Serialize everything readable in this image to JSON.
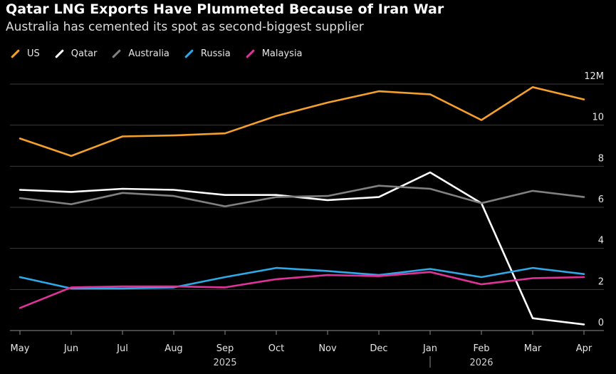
{
  "header": {
    "title": "Qatar LNG Exports Have Plummeted Because of Iran War",
    "subtitle": "Australia has cemented its spot as second-biggest supplier"
  },
  "legend": [
    {
      "name": "US",
      "color": "#f5a02c"
    },
    {
      "name": "Qatar",
      "color": "#ffffff"
    },
    {
      "name": "Australia",
      "color": "#808080"
    },
    {
      "name": "Russia",
      "color": "#2ea8e6"
    },
    {
      "name": "Malaysia",
      "color": "#e0339a"
    }
  ],
  "chart_data": {
    "type": "line",
    "categories": [
      "May",
      "Jun",
      "Jul",
      "Aug",
      "Sep",
      "Oct",
      "Nov",
      "Dec",
      "Jan",
      "Feb",
      "Mar",
      "Apr"
    ],
    "year_labels": [
      {
        "label": "2025",
        "under": "Sep"
      },
      {
        "label": "2026",
        "under": "Feb"
      }
    ],
    "ylim": [
      0,
      12
    ],
    "yticks": [
      {
        "value": 0,
        "label": "0"
      },
      {
        "value": 2,
        "label": "2"
      },
      {
        "value": 4,
        "label": "4"
      },
      {
        "value": 6,
        "label": "6"
      },
      {
        "value": 8,
        "label": "8"
      },
      {
        "value": 10,
        "label": "10"
      },
      {
        "value": 12,
        "label": "12M"
      }
    ],
    "grid": true,
    "legend_position": "top-left",
    "series": [
      {
        "name": "US",
        "color": "#f5a02c",
        "values": [
          9.35,
          8.5,
          9.45,
          9.5,
          9.6,
          10.45,
          11.1,
          11.65,
          11.5,
          10.25,
          11.85,
          11.25
        ]
      },
      {
        "name": "Qatar",
        "color": "#ffffff",
        "values": [
          6.85,
          6.75,
          6.9,
          6.85,
          6.6,
          6.6,
          6.35,
          6.5,
          7.7,
          6.2,
          0.6,
          0.3
        ]
      },
      {
        "name": "Australia",
        "color": "#808080",
        "values": [
          6.45,
          6.15,
          6.7,
          6.55,
          6.05,
          6.5,
          6.55,
          7.05,
          6.9,
          6.2,
          6.8,
          6.5
        ]
      },
      {
        "name": "Russia",
        "color": "#2ea8e6",
        "values": [
          2.6,
          2.05,
          2.05,
          2.1,
          2.6,
          3.05,
          2.9,
          2.7,
          3.0,
          2.6,
          3.05,
          2.75
        ]
      },
      {
        "name": "Malaysia",
        "color": "#e0339a",
        "values": [
          1.1,
          2.1,
          2.15,
          2.15,
          2.1,
          2.5,
          2.7,
          2.65,
          2.85,
          2.25,
          2.55,
          2.6
        ]
      }
    ]
  }
}
